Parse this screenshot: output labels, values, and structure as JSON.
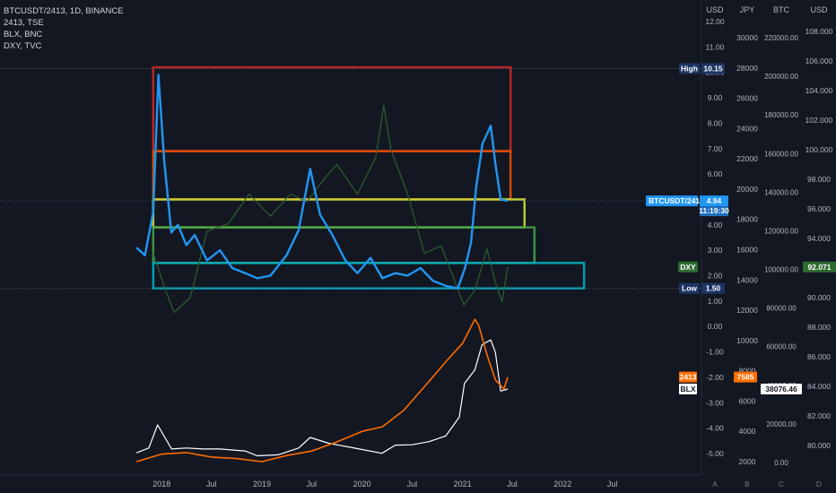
{
  "legend": {
    "line1": "BTCUSDT/2413, 1D, BINANCE",
    "line2": "2413, TSE",
    "line3": "BLX, BNC",
    "line4": "DXY, TVC"
  },
  "axis_headers": {
    "usd": "USD",
    "jpy": "JPY",
    "btc": "BTC",
    "usd2": "USD",
    "bottom_a": "A",
    "bottom_b": "B",
    "bottom_c": "C",
    "bottom_d": "D"
  },
  "colors": {
    "background": "#131722",
    "ratio_line": "#2196f3",
    "stock_line": "#ff6d00",
    "blx_line": "#ffffff",
    "dxy_line": "#2e5e2e",
    "red_box": "#c62828",
    "orange_box": "#e65100",
    "yellow_box": "#cddc39",
    "green_box": "#43a047",
    "teal_box": "#00acc1"
  },
  "labels": {
    "high": "High",
    "high_value": "10.15",
    "low": "Low",
    "low_value": "1.50",
    "ratio_name": "BTCUSDT/2413",
    "ratio_value": "4.94",
    "countdown": "11:19:30",
    "dxy_name": "DXY",
    "dxy_value": "92.071",
    "stock_name": "2413",
    "stock_value": "7585",
    "blx_name": "BLX",
    "blx_value": "38076.46"
  },
  "chart_data": {
    "type": "line",
    "x_ticks": [
      "2018",
      "Jul",
      "2019",
      "Jul",
      "2020",
      "Jul",
      "2021",
      "Jul",
      "2022",
      "Jul"
    ],
    "axes": {
      "ratio_usd": {
        "ticks": [
          "12.00",
          "11.00",
          "10.00",
          "9.00",
          "8.00",
          "7.00",
          "6.00",
          "5.00",
          "4.00",
          "3.00",
          "2.00",
          "1.00",
          "0.00",
          "-1.00",
          "-2.00",
          "-3.00",
          "-4.00",
          "-5.00"
        ],
        "range": [
          -5.5,
          12.5
        ]
      },
      "stock_jpy": {
        "ticks": [
          "30000",
          "28000",
          "26000",
          "24000",
          "22000",
          "20000",
          "18000",
          "16000",
          "14000",
          "12000",
          "10000",
          "8000",
          "6000",
          "4000",
          "2000"
        ],
        "range": [
          1000,
          30500
        ]
      },
      "blx_usd": {
        "ticks": [
          "220000.00",
          "200000.00",
          "180000.00",
          "160000.00",
          "140000.00",
          "120000.00",
          "100000.00",
          "80000.00",
          "60000.00",
          "40000.00",
          "20000.00",
          "0.00"
        ],
        "range": [
          -5000,
          225000
        ]
      },
      "dxy_usd": {
        "ticks": [
          "108.000",
          "106.000",
          "104.000",
          "102.000",
          "100.000",
          "98.000",
          "96.000",
          "94.000",
          "92.000",
          "90.000",
          "88.000",
          "86.000",
          "84.000",
          "82.000",
          "80.000"
        ],
        "range": [
          79,
          109
        ]
      }
    },
    "series": [
      {
        "name": "BTCUSDT/2413",
        "axis": "ratio_usd",
        "x": [
          "2017-10-01",
          "2017-11-01",
          "2017-12-01",
          "2017-12-20",
          "2018-01-10",
          "2018-02-05",
          "2018-03-01",
          "2018-04-01",
          "2018-05-01",
          "2018-06-15",
          "2018-08-01",
          "2018-09-15",
          "2018-11-01",
          "2018-12-15",
          "2019-02-01",
          "2019-04-01",
          "2019-05-15",
          "2019-06-26",
          "2019-08-01",
          "2019-09-15",
          "2019-11-01",
          "2019-12-15",
          "2020-02-01",
          "2020-03-15",
          "2020-05-01",
          "2020-06-15",
          "2020-08-01",
          "2020-09-15",
          "2020-11-01",
          "2020-12-15",
          "2021-01-10",
          "2021-02-01",
          "2021-02-20",
          "2021-03-15",
          "2021-04-14",
          "2021-05-01",
          "2021-05-20",
          "2021-06-15"
        ],
        "y": [
          3.1,
          2.8,
          4.5,
          9.9,
          6.5,
          3.7,
          4.0,
          3.2,
          3.6,
          2.6,
          3.0,
          2.3,
          2.1,
          1.9,
          2.0,
          2.8,
          3.8,
          6.2,
          4.4,
          3.6,
          2.6,
          2.1,
          2.7,
          1.9,
          2.1,
          2.0,
          2.3,
          1.8,
          1.6,
          1.5,
          2.3,
          3.3,
          5.5,
          7.2,
          7.9,
          6.4,
          5.0,
          4.94
        ]
      },
      {
        "name": "2413",
        "axis": "stock_jpy",
        "x": [
          "2017-10-01",
          "2018-01-01",
          "2018-04-01",
          "2018-07-01",
          "2018-10-01",
          "2019-01-01",
          "2019-04-01",
          "2019-07-01",
          "2019-10-01",
          "2020-01-01",
          "2020-03-15",
          "2020-06-01",
          "2020-09-01",
          "2020-11-01",
          "2021-01-01",
          "2021-02-15",
          "2021-03-01",
          "2021-04-01",
          "2021-05-01",
          "2021-06-01",
          "2021-06-15"
        ],
        "y": [
          2000,
          2500,
          2600,
          2300,
          2200,
          2000,
          2400,
          2700,
          3300,
          4000,
          4300,
          5400,
          7300,
          8600,
          9800,
          11400,
          11000,
          9000,
          7400,
          6800,
          7585
        ]
      },
      {
        "name": "BLX",
        "axis": "blx_usd",
        "x": [
          "2017-10-01",
          "2017-11-15",
          "2017-12-17",
          "2018-02-06",
          "2018-04-01",
          "2018-06-01",
          "2018-08-01",
          "2018-11-01",
          "2018-12-15",
          "2019-03-01",
          "2019-05-15",
          "2019-06-26",
          "2019-09-01",
          "2019-12-15",
          "2020-03-13",
          "2020-05-01",
          "2020-07-01",
          "2020-09-01",
          "2020-11-01",
          "2020-12-20",
          "2021-01-08",
          "2021-02-15",
          "2021-03-13",
          "2021-04-14",
          "2021-05-01",
          "2021-05-20",
          "2021-06-15"
        ],
        "y": [
          5000,
          7500,
          19500,
          7000,
          7500,
          7000,
          7000,
          6000,
          3500,
          4000,
          7500,
          13000,
          10000,
          7200,
          4800,
          9000,
          9200,
          10800,
          13800,
          23500,
          41000,
          48000,
          61000,
          63500,
          57000,
          37000,
          38076.46
        ]
      },
      {
        "name": "DXY",
        "axis": "dxy_usd",
        "x": [
          "2017-12-01",
          "2018-01-15",
          "2018-02-15",
          "2018-04-15",
          "2018-06-15",
          "2018-09-01",
          "2018-11-15",
          "2019-02-01",
          "2019-04-15",
          "2019-06-15",
          "2019-08-15",
          "2019-10-01",
          "2019-12-15",
          "2020-02-20",
          "2020-03-20",
          "2020-04-15",
          "2020-06-15",
          "2020-08-15",
          "2020-10-15",
          "2021-01-06",
          "2021-02-15",
          "2021-03-31",
          "2021-05-01",
          "2021-05-25",
          "2021-06-15"
        ],
        "y": [
          93.0,
          90.5,
          89.0,
          90.0,
          94.5,
          95.0,
          97.0,
          95.5,
          97.0,
          96.5,
          98.0,
          99.0,
          97.0,
          99.5,
          103.0,
          100.0,
          97.0,
          93.0,
          93.5,
          89.5,
          90.5,
          93.3,
          91.0,
          89.7,
          92.071
        ]
      }
    ],
    "zones": [
      {
        "name": "red",
        "y_range": [
          6.9,
          10.2
        ],
        "x_range": [
          "2017-12-01",
          "2021-06-25"
        ]
      },
      {
        "name": "orange",
        "y_range": [
          5.0,
          6.9
        ],
        "x_range": [
          "2017-12-01",
          "2021-06-25"
        ]
      },
      {
        "name": "yellow",
        "y_range": [
          3.9,
          5.0
        ],
        "x_range": [
          "2017-12-01",
          "2021-08-15"
        ]
      },
      {
        "name": "green",
        "y_range": [
          2.5,
          3.9
        ],
        "x_range": [
          "2017-12-01",
          "2021-09-20"
        ]
      },
      {
        "name": "teal",
        "y_range": [
          1.5,
          2.5
        ],
        "x_range": [
          "2017-12-01",
          "2022-03-20"
        ]
      }
    ],
    "price_lines": [
      {
        "label": "High",
        "value": 10.15,
        "axis": "ratio_usd"
      },
      {
        "label": "Low",
        "value": 1.5,
        "axis": "ratio_usd"
      },
      {
        "label": "BTCUSDT/2413",
        "value": 4.94,
        "axis": "ratio_usd"
      },
      {
        "label": "DXY",
        "value": 92.071,
        "axis": "dxy_usd"
      },
      {
        "label": "2413",
        "value": 7585,
        "axis": "stock_jpy"
      },
      {
        "label": "BLX",
        "value": 38076.46,
        "axis": "blx_usd"
      }
    ]
  }
}
